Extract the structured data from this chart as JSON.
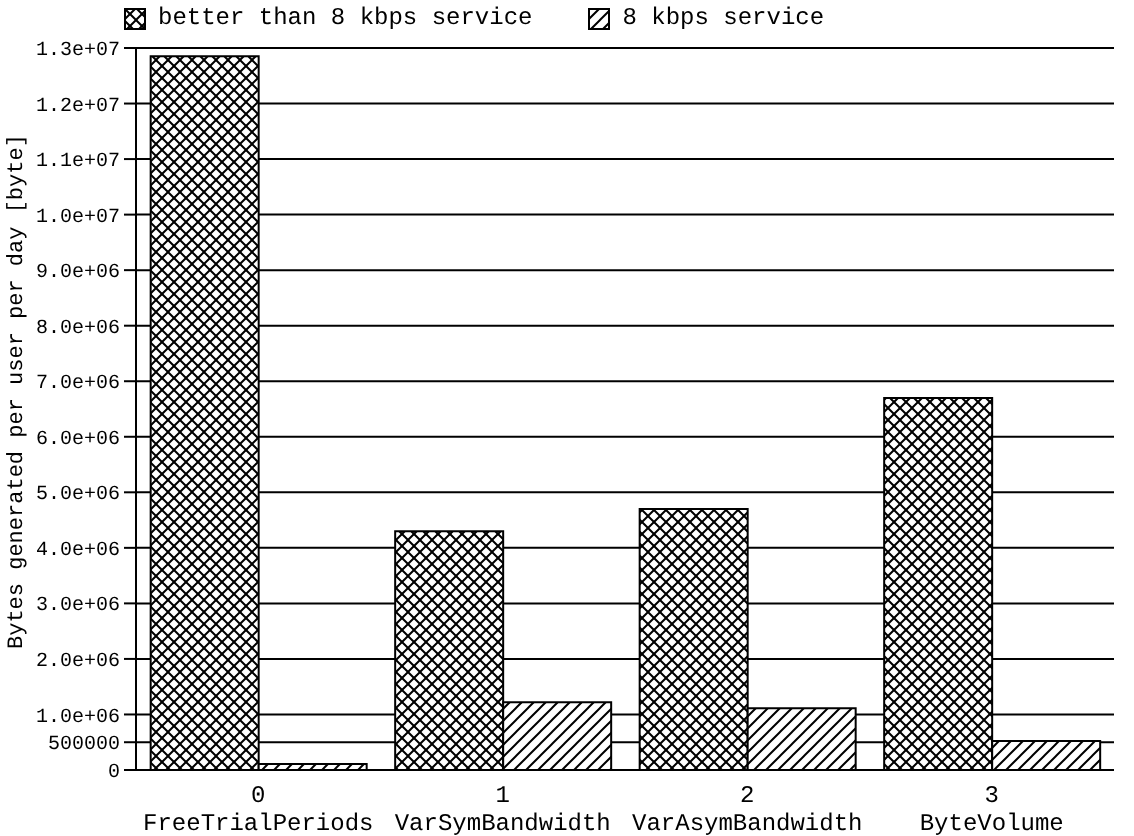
{
  "chart_data": {
    "type": "bar",
    "ylabel": "Bytes generated per user per day [byte]",
    "categories": [
      "0\nFreeTrialPeriods",
      "1\nVarSymBandwidth",
      "2\nVarAsymBandwidth",
      "3\nByteVolume"
    ],
    "series": [
      {
        "name": "better than 8 kbps service",
        "color": "#000000",
        "values": [
          12850000,
          4300000,
          4700000,
          6700000
        ]
      },
      {
        "name": "8 kbps service",
        "color": "#000000",
        "values": [
          110000,
          1220000,
          1110000,
          520000
        ]
      }
    ],
    "ylim": [
      0,
      13000000
    ],
    "yticks": [
      0,
      {
        "value": 500000,
        "label": "500000"
      },
      {
        "value": 1000000,
        "label": "1.0e+06"
      },
      {
        "value": 2000000,
        "label": "2.0e+06"
      },
      {
        "value": 3000000,
        "label": "3.0e+06"
      },
      {
        "value": 4000000,
        "label": "4.0e+06"
      },
      {
        "value": 5000000,
        "label": "5.0e+06"
      },
      {
        "value": 6000000,
        "label": "6.0e+06"
      },
      {
        "value": 7000000,
        "label": "7.0e+06"
      },
      {
        "value": 8000000,
        "label": "8.0e+06"
      },
      {
        "value": 9000000,
        "label": "9.0e+06"
      },
      {
        "value": 10000000,
        "label": "1.0e+07"
      },
      {
        "value": 11000000,
        "label": "1.1e+07"
      },
      {
        "value": 12000000,
        "label": "1.2e+07"
      },
      {
        "value": 13000000,
        "label": "1.3e+07"
      }
    ],
    "grid": "y",
    "legend": "top"
  }
}
